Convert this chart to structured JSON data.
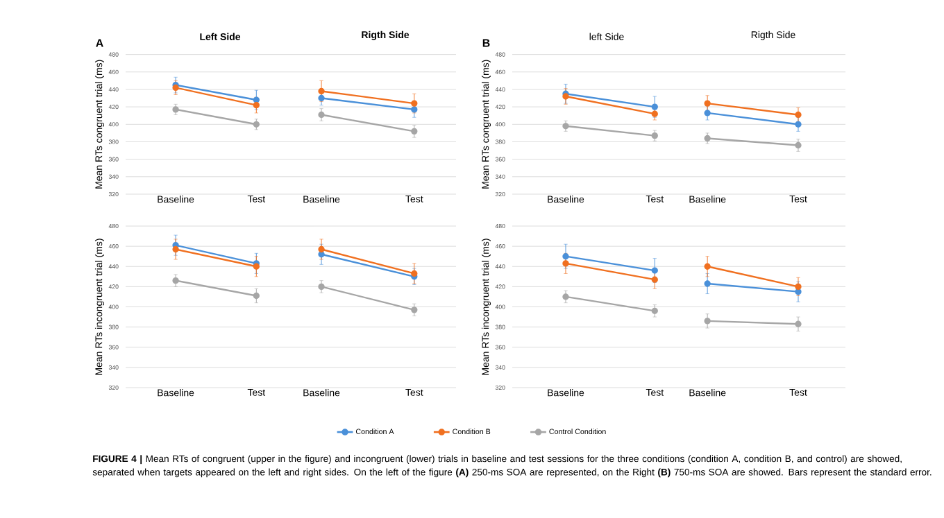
{
  "chart_data": [
    {
      "type": "line",
      "title": "Left Side",
      "ylabel": "Mean RTs congruent trial (ms)",
      "categories": [
        "Baseline",
        "Test"
      ],
      "ylim": [
        320,
        480
      ],
      "yticks": [
        320,
        340,
        360,
        380,
        400,
        420,
        440,
        460,
        480
      ],
      "grid": "y",
      "marker": "circle",
      "annotations": [
        "A",
        "**FIGURE 4 |** Mean RTs of congruent (upper in the figure) and incongruent (lower) trials in baseline and test sessions for the three conditions (condition A, condition B, and control) are showed, separated when targets appeared on the left and right sides. On the left of the figure **(A)** 250-ms SOA are represented, on the Right **(B)** 750-ms SOA are showed. Bars represent the standard error."
      ],
      "series": [
        {
          "color": "#4a90d9",
          "values": [
            445,
            428
          ],
          "errors": [
            9,
            11
          ]
        },
        {
          "color": "#f07020",
          "values": [
            442,
            422
          ],
          "errors": [
            8,
            9
          ]
        },
        {
          "color": "#a6a6a6",
          "values": [
            417,
            400
          ],
          "errors": [
            6,
            6
          ]
        }
      ]
    },
    {
      "type": "line",
      "title": "Rigth Side",
      "categories": [
        "Baseline",
        "Test"
      ],
      "ylim": [
        320,
        480
      ],
      "yticks": [
        320,
        340,
        360,
        380,
        400,
        420,
        440,
        460,
        480
      ],
      "grid": "y",
      "marker": "circle",
      "tick_labels": "x",
      "series": [
        {
          "color": "#4a90d9",
          "values": [
            430,
            417
          ],
          "errors": [
            8,
            9
          ]
        },
        {
          "color": "#f07020",
          "values": [
            438,
            424
          ],
          "errors": [
            12,
            11
          ]
        },
        {
          "color": "#a6a6a6",
          "values": [
            411,
            392
          ],
          "errors": [
            7,
            7
          ]
        }
      ]
    },
    {
      "type": "line",
      "title": "left Side",
      "ylabel": "Mean RTs congruent trial (ms)",
      "categories": [
        "Baseline",
        "Test"
      ],
      "ylim": [
        320,
        480
      ],
      "yticks": [
        320,
        340,
        360,
        380,
        400,
        420,
        440,
        460,
        480
      ],
      "grid": "y",
      "marker": "circle",
      "annotations": [
        "B"
      ],
      "series": [
        {
          "color": "#4a90d9",
          "values": [
            435,
            420
          ],
          "errors": [
            11,
            12
          ]
        },
        {
          "color": "#f07020",
          "values": [
            432,
            412
          ],
          "errors": [
            9,
            7
          ]
        },
        {
          "color": "#a6a6a6",
          "values": [
            398,
            387
          ],
          "errors": [
            6,
            6
          ]
        }
      ]
    },
    {
      "type": "line",
      "title": "Rigth Side",
      "categories": [
        "Baseline",
        "Test"
      ],
      "ylim": [
        320,
        480
      ],
      "yticks": [
        320,
        340,
        360,
        380,
        400,
        420,
        440,
        460,
        480
      ],
      "grid": "y",
      "marker": "circle",
      "tick_labels": "x",
      "series": [
        {
          "color": "#4a90d9",
          "values": [
            413,
            400
          ],
          "errors": [
            8,
            8
          ]
        },
        {
          "color": "#f07020",
          "values": [
            424,
            411
          ],
          "errors": [
            9,
            8
          ]
        },
        {
          "color": "#a6a6a6",
          "values": [
            384,
            376
          ],
          "errors": [
            6,
            7
          ]
        }
      ]
    },
    {
      "type": "line",
      "ylabel": "Mean RTs incongruent trial (ms)",
      "categories": [
        "Baseline",
        "Test"
      ],
      "ylim": [
        320,
        480
      ],
      "yticks": [
        320,
        340,
        360,
        380,
        400,
        420,
        440,
        460,
        480
      ],
      "grid": "y",
      "marker": "circle",
      "legend": "bottom",
      "series": [
        {
          "name": "Condition A",
          "color": "#4a90d9",
          "values": [
            461,
            443
          ],
          "errors": [
            10,
            10
          ]
        },
        {
          "name": "Condition B",
          "color": "#f07020",
          "values": [
            457,
            440
          ],
          "errors": [
            10,
            10
          ]
        },
        {
          "name": "Control Condition",
          "color": "#a6a6a6",
          "values": [
            426,
            411
          ],
          "errors": [
            6,
            7
          ]
        }
      ]
    },
    {
      "type": "line",
      "categories": [
        "Baseline",
        "Test"
      ],
      "ylim": [
        320,
        480
      ],
      "yticks": [
        320,
        340,
        360,
        380,
        400,
        420,
        440,
        460,
        480
      ],
      "grid": "y",
      "marker": "circle",
      "tick_labels": "x",
      "series": [
        {
          "color": "#4a90d9",
          "values": [
            452,
            430
          ],
          "errors": [
            10,
            8
          ]
        },
        {
          "color": "#f07020",
          "values": [
            457,
            433
          ],
          "errors": [
            10,
            10
          ]
        },
        {
          "color": "#a6a6a6",
          "values": [
            420,
            397
          ],
          "errors": [
            6,
            6
          ]
        }
      ]
    },
    {
      "type": "line",
      "ylabel": "Mean RTs incongruent trial (ms)",
      "categories": [
        "Baseline",
        "Test"
      ],
      "ylim": [
        320,
        480
      ],
      "yticks": [
        320,
        340,
        360,
        380,
        400,
        420,
        440,
        460,
        480
      ],
      "grid": "y",
      "marker": "circle",
      "series": [
        {
          "color": "#4a90d9",
          "values": [
            450,
            436
          ],
          "errors": [
            12,
            12
          ]
        },
        {
          "color": "#f07020",
          "values": [
            443,
            427
          ],
          "errors": [
            10,
            9
          ]
        },
        {
          "color": "#a6a6a6",
          "values": [
            410,
            396
          ],
          "errors": [
            6,
            6
          ]
        }
      ]
    },
    {
      "type": "line",
      "categories": [
        "Baseline",
        "Test"
      ],
      "ylim": [
        320,
        480
      ],
      "yticks": [
        320,
        340,
        360,
        380,
        400,
        420,
        440,
        460,
        480
      ],
      "grid": "y",
      "marker": "circle",
      "tick_labels": "x",
      "series": [
        {
          "color": "#4a90d9",
          "values": [
            423,
            415
          ],
          "errors": [
            10,
            10
          ]
        },
        {
          "color": "#f07020",
          "values": [
            440,
            420
          ],
          "errors": [
            10,
            9
          ]
        },
        {
          "color": "#a6a6a6",
          "values": [
            386,
            383
          ],
          "errors": [
            7,
            7
          ]
        }
      ]
    }
  ]
}
